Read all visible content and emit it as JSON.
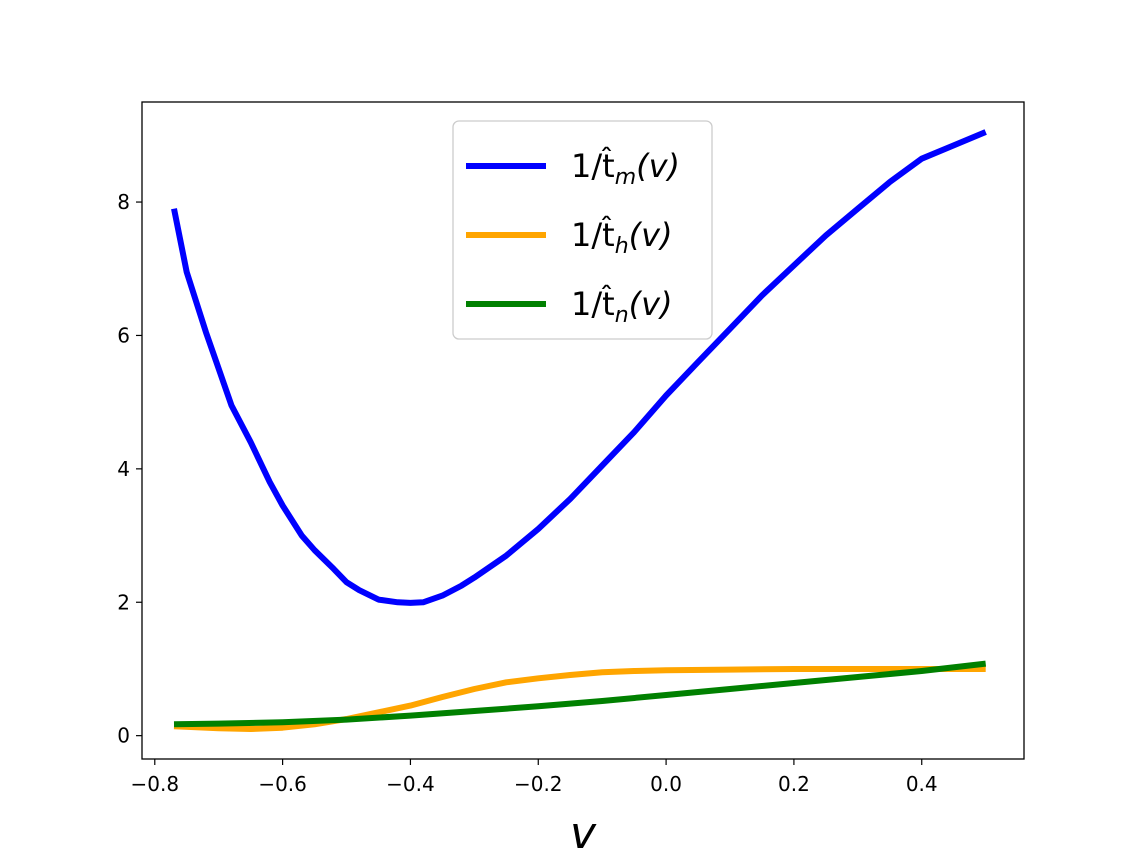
{
  "chart_data": {
    "type": "line",
    "title": "",
    "xlabel": "v",
    "ylabel": "",
    "xlim": [
      -0.82,
      0.56
    ],
    "ylim": [
      -0.35,
      9.5
    ],
    "xticks": [
      -0.8,
      -0.6,
      -0.4,
      -0.2,
      0.0,
      0.2,
      0.4
    ],
    "xtick_labels": [
      "−0.8",
      "−0.6",
      "−0.4",
      "−0.2",
      "0.0",
      "0.2",
      "0.4"
    ],
    "yticks": [
      0,
      2,
      4,
      6,
      8
    ],
    "ytick_labels": [
      "0",
      "2",
      "4",
      "6",
      "8"
    ],
    "grid": false,
    "legend_position": "top-center",
    "series": [
      {
        "name": "1/t̂m(v)",
        "legend_base": "1/t̂",
        "legend_sub": "m",
        "legend_tail": "(v)",
        "color": "#0000ff",
        "x": [
          -0.77,
          -0.75,
          -0.72,
          -0.7,
          -0.68,
          -0.65,
          -0.62,
          -0.6,
          -0.57,
          -0.55,
          -0.52,
          -0.5,
          -0.48,
          -0.45,
          -0.42,
          -0.4,
          -0.38,
          -0.35,
          -0.32,
          -0.3,
          -0.25,
          -0.2,
          -0.15,
          -0.1,
          -0.05,
          0.0,
          0.05,
          0.1,
          0.15,
          0.2,
          0.25,
          0.3,
          0.35,
          0.4,
          0.45,
          0.5
        ],
        "y": [
          7.9,
          6.95,
          6.05,
          5.5,
          4.95,
          4.4,
          3.8,
          3.45,
          3.0,
          2.78,
          2.5,
          2.3,
          2.18,
          2.04,
          2.0,
          1.99,
          2.0,
          2.1,
          2.25,
          2.37,
          2.7,
          3.1,
          3.55,
          4.05,
          4.55,
          5.1,
          5.6,
          6.1,
          6.6,
          7.05,
          7.5,
          7.9,
          8.3,
          8.65,
          8.85,
          9.05
        ]
      },
      {
        "name": "1/t̂h(v)",
        "legend_base": "1/t̂",
        "legend_sub": "h",
        "legend_tail": "(v)",
        "color": "#ffa500",
        "x": [
          -0.77,
          -0.7,
          -0.65,
          -0.6,
          -0.55,
          -0.5,
          -0.45,
          -0.4,
          -0.35,
          -0.3,
          -0.25,
          -0.2,
          -0.15,
          -0.1,
          -0.05,
          0.0,
          0.1,
          0.2,
          0.3,
          0.4,
          0.5
        ],
        "y": [
          0.14,
          0.11,
          0.1,
          0.12,
          0.17,
          0.25,
          0.35,
          0.45,
          0.58,
          0.7,
          0.8,
          0.86,
          0.91,
          0.95,
          0.97,
          0.98,
          0.99,
          1.0,
          1.0,
          1.0,
          1.0
        ]
      },
      {
        "name": "1/t̂n(v)",
        "legend_base": "1/t̂",
        "legend_sub": "n",
        "legend_tail": "(v)",
        "color": "#008000",
        "x": [
          -0.77,
          -0.7,
          -0.6,
          -0.5,
          -0.4,
          -0.3,
          -0.2,
          -0.1,
          0.0,
          0.1,
          0.2,
          0.3,
          0.4,
          0.5
        ],
        "y": [
          0.17,
          0.18,
          0.2,
          0.24,
          0.3,
          0.37,
          0.44,
          0.52,
          0.61,
          0.7,
          0.79,
          0.88,
          0.97,
          1.08
        ]
      }
    ]
  }
}
